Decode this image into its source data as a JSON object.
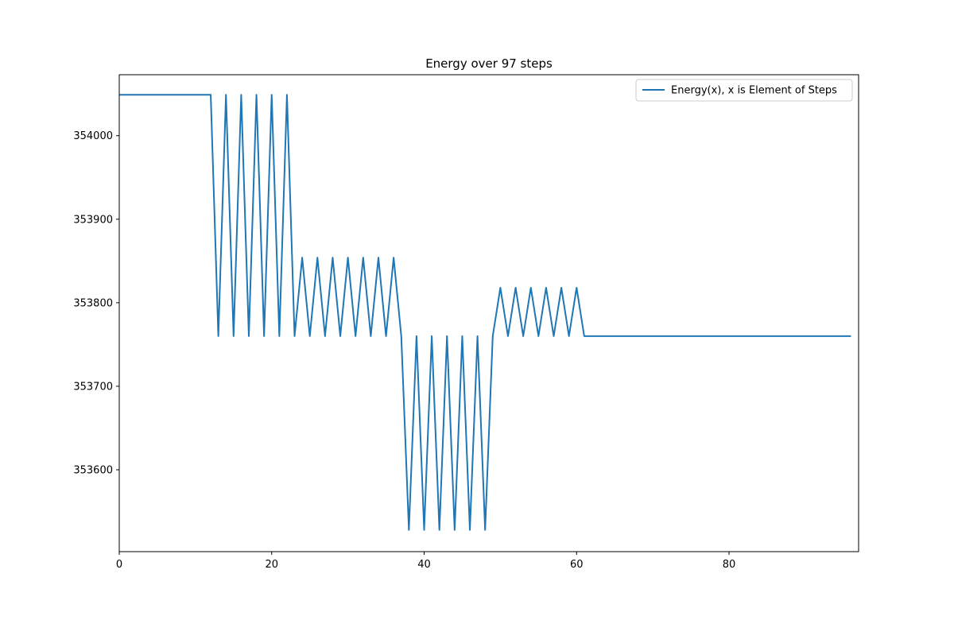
{
  "chart_data": {
    "type": "line",
    "title": "Energy over  97 steps",
    "xlabel": "",
    "ylabel": "",
    "xlim": [
      0,
      97
    ],
    "ylim": [
      353502,
      354073
    ],
    "xticks": [
      0,
      20,
      40,
      60,
      80
    ],
    "yticks": [
      353600,
      353700,
      353800,
      353900,
      354000
    ],
    "grid": false,
    "legend_position": "top-right",
    "series_color": "#1f77b4",
    "series": [
      {
        "name": "Energy(x), x is Element of Steps",
        "x": [
          0,
          1,
          2,
          3,
          4,
          5,
          6,
          7,
          8,
          9,
          10,
          11,
          12,
          13,
          14,
          15,
          16,
          17,
          18,
          19,
          20,
          21,
          22,
          23,
          24,
          25,
          26,
          27,
          28,
          29,
          30,
          31,
          32,
          33,
          34,
          35,
          36,
          37,
          38,
          39,
          40,
          41,
          42,
          43,
          44,
          45,
          46,
          47,
          48,
          49,
          50,
          51,
          52,
          53,
          54,
          55,
          56,
          57,
          58,
          59,
          60,
          61,
          62,
          63,
          64,
          65,
          66,
          67,
          68,
          69,
          70,
          71,
          72,
          73,
          74,
          75,
          76,
          77,
          78,
          79,
          80,
          81,
          82,
          83,
          84,
          85,
          86,
          87,
          88,
          89,
          90,
          91,
          92,
          93,
          94,
          95,
          96
        ],
        "values": [
          354049,
          354049,
          354049,
          354049,
          354049,
          354049,
          354049,
          354049,
          354049,
          354049,
          354049,
          354049,
          354049,
          353760,
          354049,
          353760,
          354049,
          353760,
          354049,
          353760,
          354049,
          353760,
          354049,
          353760,
          353854,
          353760,
          353854,
          353760,
          353854,
          353760,
          353854,
          353760,
          353854,
          353760,
          353854,
          353760,
          353854,
          353760,
          353528,
          353760,
          353528,
          353760,
          353528,
          353760,
          353528,
          353760,
          353528,
          353760,
          353528,
          353760,
          353818,
          353760,
          353818,
          353760,
          353818,
          353760,
          353818,
          353760,
          353818,
          353760,
          353818,
          353760,
          353760,
          353760,
          353760,
          353760,
          353760,
          353760,
          353760,
          353760,
          353760,
          353760,
          353760,
          353760,
          353760,
          353760,
          353760,
          353760,
          353760,
          353760,
          353760,
          353760,
          353760,
          353760,
          353760,
          353760,
          353760,
          353760,
          353760,
          353760,
          353760,
          353760,
          353760,
          353760,
          353760,
          353760,
          353760
        ]
      }
    ]
  }
}
